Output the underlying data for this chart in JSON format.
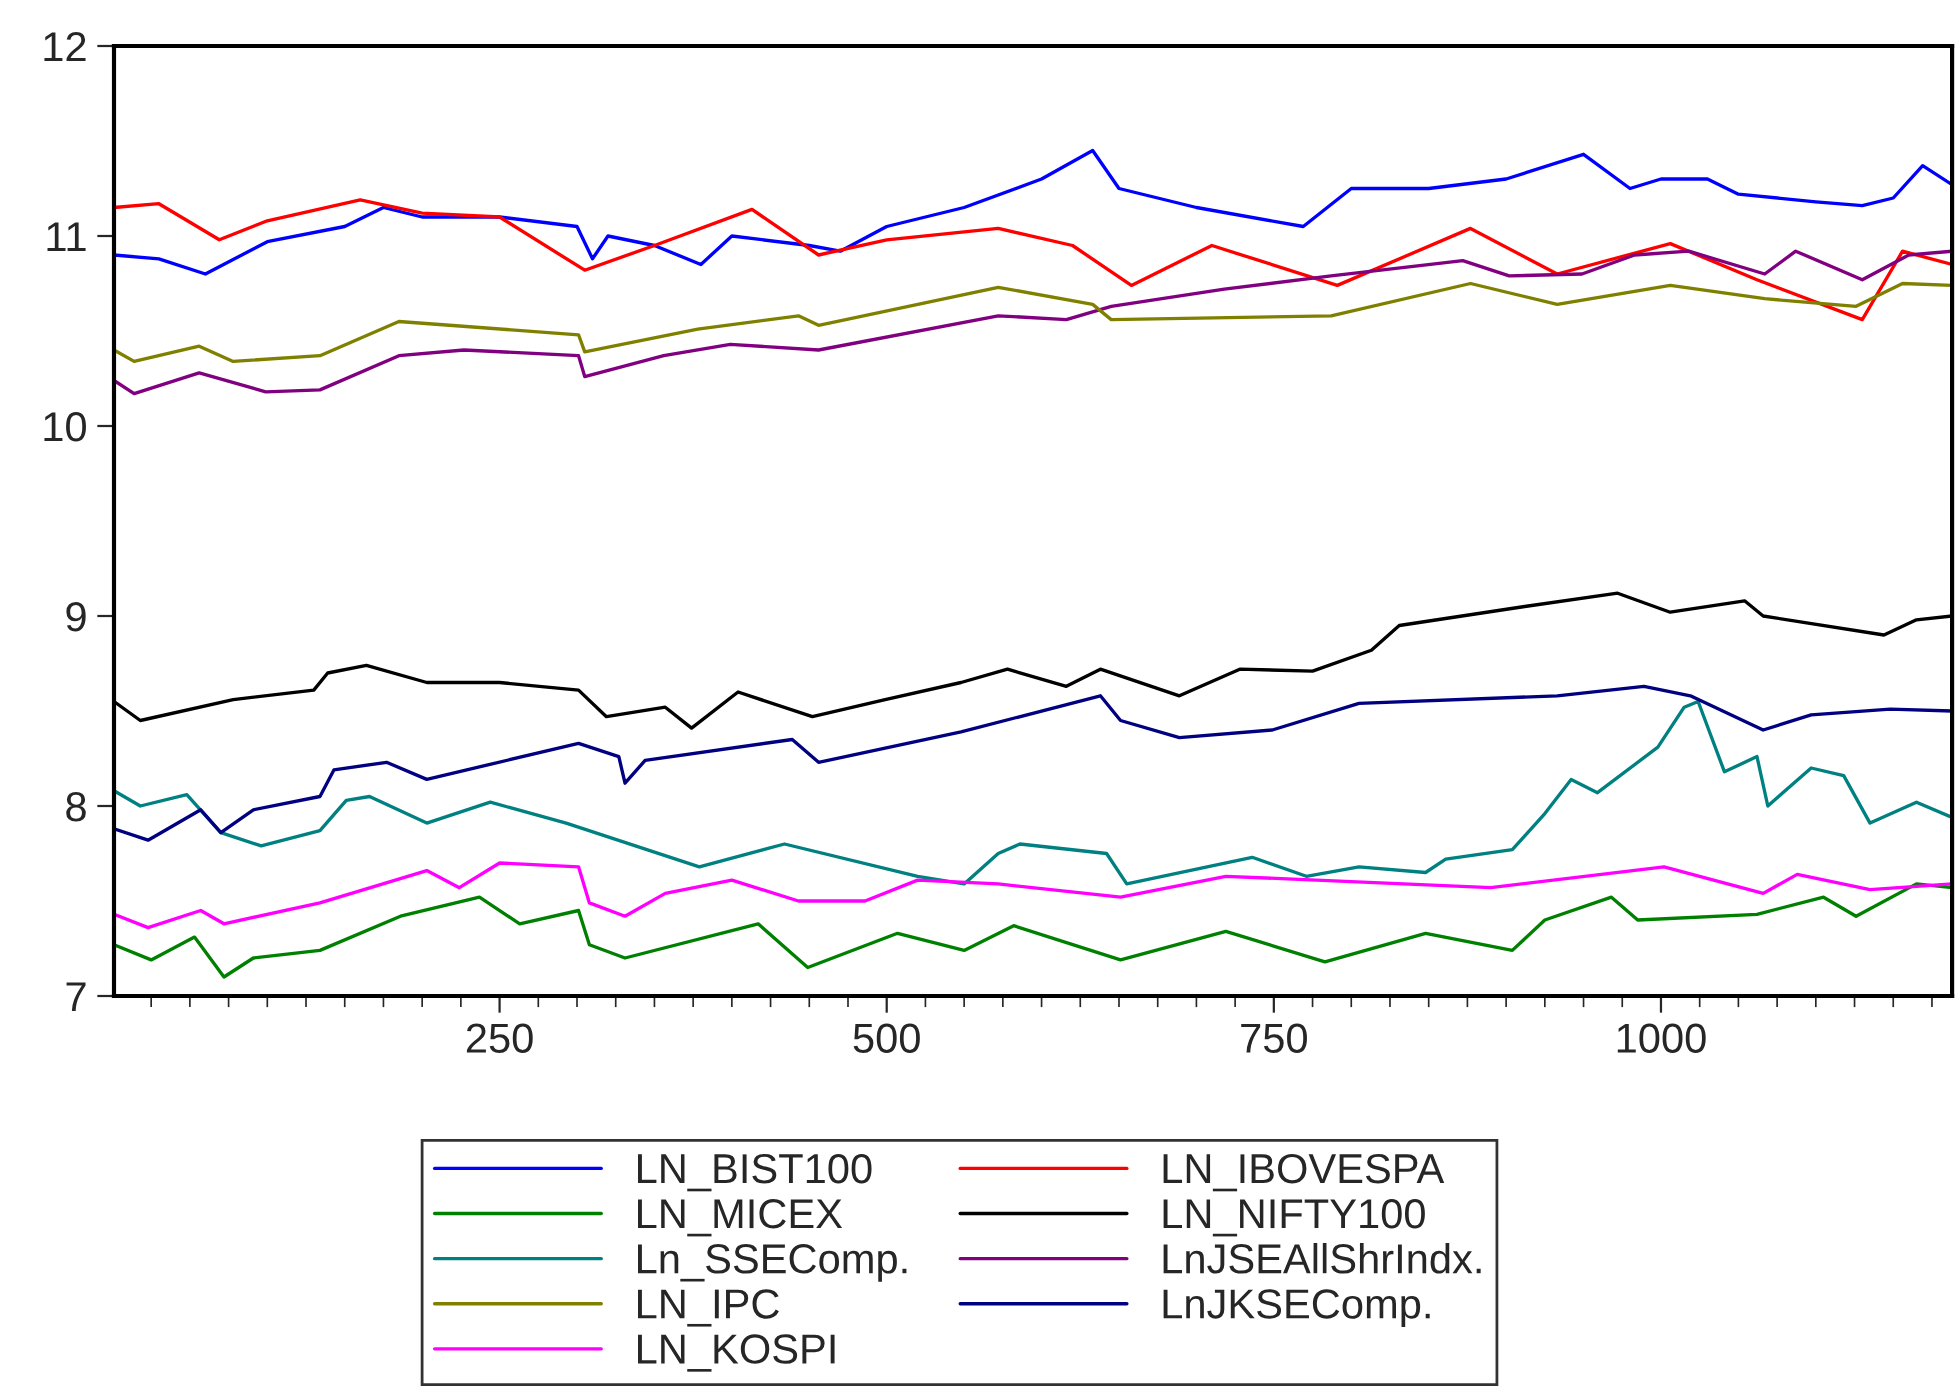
{
  "chart_data": {
    "type": "line",
    "xlim": [
      1,
      1188
    ],
    "xticks": [
      250,
      500,
      750,
      1000
    ],
    "ylim": [
      7,
      12
    ],
    "yticks": [
      7,
      8,
      9,
      10,
      11,
      12
    ],
    "grid": false,
    "legend": "bottom",
    "marker": "none",
    "line_style": "solid",
    "series": [
      {
        "name": "LN_BIST100",
        "color": "#0000ff",
        "x": [
          1,
          30,
          60,
          100,
          150,
          175,
          200,
          250,
          300,
          310,
          320,
          350,
          380,
          400,
          450,
          470,
          500,
          550,
          600,
          633,
          650,
          700,
          769,
          800,
          850,
          900,
          950,
          980,
          1000,
          1030,
          1050,
          1100,
          1130,
          1150,
          1169,
          1188
        ],
        "values": [
          10.9,
          10.88,
          10.8,
          10.97,
          11.05,
          11.15,
          11.1,
          11.1,
          11.05,
          10.88,
          11.0,
          10.95,
          10.85,
          11.0,
          10.95,
          10.92,
          11.05,
          11.15,
          11.3,
          11.45,
          11.25,
          11.15,
          11.05,
          11.25,
          11.25,
          11.3,
          11.43,
          11.25,
          11.3,
          11.3,
          11.22,
          11.18,
          11.16,
          11.2,
          11.37,
          11.27
        ]
      },
      {
        "name": "LN_IBOVESPA",
        "color": "#ff0000",
        "x": [
          1,
          30,
          69,
          100,
          160,
          200,
          250,
          305,
          350,
          413,
          456,
          500,
          572,
          620,
          658,
          710,
          791,
          877,
          933,
          1006,
          1062,
          1130,
          1156,
          1188
        ],
        "values": [
          11.15,
          11.17,
          10.98,
          11.08,
          11.19,
          11.12,
          11.1,
          10.82,
          10.95,
          11.14,
          10.9,
          10.98,
          11.04,
          10.95,
          10.74,
          10.95,
          10.74,
          11.04,
          10.8,
          10.96,
          10.77,
          10.56,
          10.92,
          10.85
        ]
      },
      {
        "name": "LN_MICEX",
        "color": "#008000",
        "x": [
          1,
          25,
          53,
          72,
          91,
          134,
          186,
          237,
          263,
          301,
          308,
          331,
          417,
          449,
          507,
          550,
          582,
          651,
          719,
          783,
          848,
          904,
          925,
          968,
          985,
          1062,
          1105,
          1126,
          1165,
          1188
        ],
        "values": [
          7.27,
          7.19,
          7.31,
          7.1,
          7.2,
          7.24,
          7.42,
          7.52,
          7.38,
          7.45,
          7.27,
          7.2,
          7.38,
          7.15,
          7.33,
          7.24,
          7.37,
          7.19,
          7.34,
          7.18,
          7.33,
          7.24,
          7.4,
          7.52,
          7.4,
          7.43,
          7.52,
          7.42,
          7.59,
          7.57
        ]
      },
      {
        "name": "LN_NIFTY100",
        "color": "#000000",
        "x": [
          1,
          18,
          78,
          130,
          139,
          164,
          203,
          250,
          301,
          319,
          357,
          374,
          404,
          452,
          499,
          548,
          578,
          616,
          638,
          689,
          728,
          775,
          813,
          831,
          912,
          972,
          1006,
          1054,
          1066,
          1144,
          1165,
          1188
        ],
        "values": [
          8.55,
          8.45,
          8.56,
          8.61,
          8.7,
          8.74,
          8.65,
          8.65,
          8.61,
          8.47,
          8.52,
          8.41,
          8.6,
          8.47,
          8.56,
          8.65,
          8.72,
          8.63,
          8.72,
          8.58,
          8.72,
          8.71,
          8.82,
          8.95,
          9.05,
          9.12,
          9.02,
          9.08,
          9.0,
          8.9,
          8.98,
          9.0
        ]
      },
      {
        "name": "Ln_SSEComp.",
        "color": "#008080",
        "x": [
          1,
          18,
          48,
          70,
          96,
          134,
          151,
          166,
          203,
          244,
          293,
          379,
          434,
          520,
          550,
          572,
          586,
          642,
          655,
          736,
          771,
          805,
          848,
          861,
          904,
          925,
          942,
          959,
          998,
          1015,
          1024,
          1041,
          1062,
          1069,
          1097,
          1118,
          1135,
          1165,
          1188
        ],
        "values": [
          8.08,
          8.0,
          8.06,
          7.86,
          7.79,
          7.87,
          8.03,
          8.05,
          7.91,
          8.02,
          7.91,
          7.68,
          7.8,
          7.63,
          7.59,
          7.75,
          7.8,
          7.75,
          7.59,
          7.73,
          7.63,
          7.68,
          7.65,
          7.72,
          7.77,
          7.96,
          8.14,
          8.07,
          8.31,
          8.52,
          8.55,
          8.18,
          8.26,
          8.0,
          8.2,
          8.16,
          7.91,
          8.02,
          7.94
        ]
      },
      {
        "name": "LnJSEAllShrIndx.",
        "color": "#800080",
        "x": [
          1,
          14,
          56,
          99,
          134,
          185,
          227,
          301,
          305,
          356,
          399,
          456,
          572,
          616,
          645,
          718,
          787,
          872,
          902,
          949,
          983,
          1018,
          1067,
          1087,
          1130,
          1160,
          1188
        ],
        "values": [
          10.24,
          10.17,
          10.28,
          10.18,
          10.19,
          10.37,
          10.4,
          10.37,
          10.26,
          10.37,
          10.43,
          10.4,
          10.58,
          10.56,
          10.63,
          10.72,
          10.79,
          10.87,
          10.79,
          10.8,
          10.9,
          10.92,
          10.8,
          10.92,
          10.77,
          10.9,
          10.92
        ]
      },
      {
        "name": "LN_IPC",
        "color": "#808000",
        "x": [
          1,
          14,
          56,
          78,
          134,
          185,
          301,
          305,
          378,
          443,
          456,
          572,
          633,
          645,
          787,
          877,
          933,
          1006,
          1067,
          1126,
          1156,
          1188
        ],
        "values": [
          10.4,
          10.34,
          10.42,
          10.34,
          10.37,
          10.55,
          10.48,
          10.39,
          10.51,
          10.58,
          10.53,
          10.73,
          10.64,
          10.56,
          10.58,
          10.75,
          10.64,
          10.74,
          10.67,
          10.63,
          10.75,
          10.74
        ]
      },
      {
        "name": "LnJKSEComp.",
        "color": "#000080",
        "x": [
          1,
          23,
          57,
          70,
          91,
          134,
          143,
          177,
          203,
          301,
          327,
          331,
          344,
          439,
          456,
          548,
          638,
          651,
          689,
          749,
          805,
          933,
          989,
          1019,
          1066,
          1097,
          1148,
          1188
        ],
        "values": [
          7.88,
          7.82,
          7.98,
          7.86,
          7.98,
          8.05,
          8.19,
          8.23,
          8.14,
          8.33,
          8.26,
          8.12,
          8.24,
          8.35,
          8.23,
          8.39,
          8.58,
          8.45,
          8.36,
          8.4,
          8.54,
          8.58,
          8.63,
          8.58,
          8.4,
          8.48,
          8.51,
          8.5
        ]
      },
      {
        "name": "LN_KOSPI",
        "color": "#ff00ff",
        "x": [
          1,
          23,
          57,
          72,
          134,
          203,
          224,
          250,
          301,
          308,
          331,
          357,
          400,
          443,
          486,
          520,
          572,
          651,
          719,
          890,
          1002,
          1066,
          1088,
          1135,
          1188
        ],
        "values": [
          7.43,
          7.36,
          7.45,
          7.38,
          7.49,
          7.66,
          7.57,
          7.7,
          7.68,
          7.49,
          7.42,
          7.54,
          7.61,
          7.5,
          7.5,
          7.61,
          7.59,
          7.52,
          7.63,
          7.57,
          7.68,
          7.54,
          7.64,
          7.56,
          7.59
        ]
      }
    ]
  }
}
